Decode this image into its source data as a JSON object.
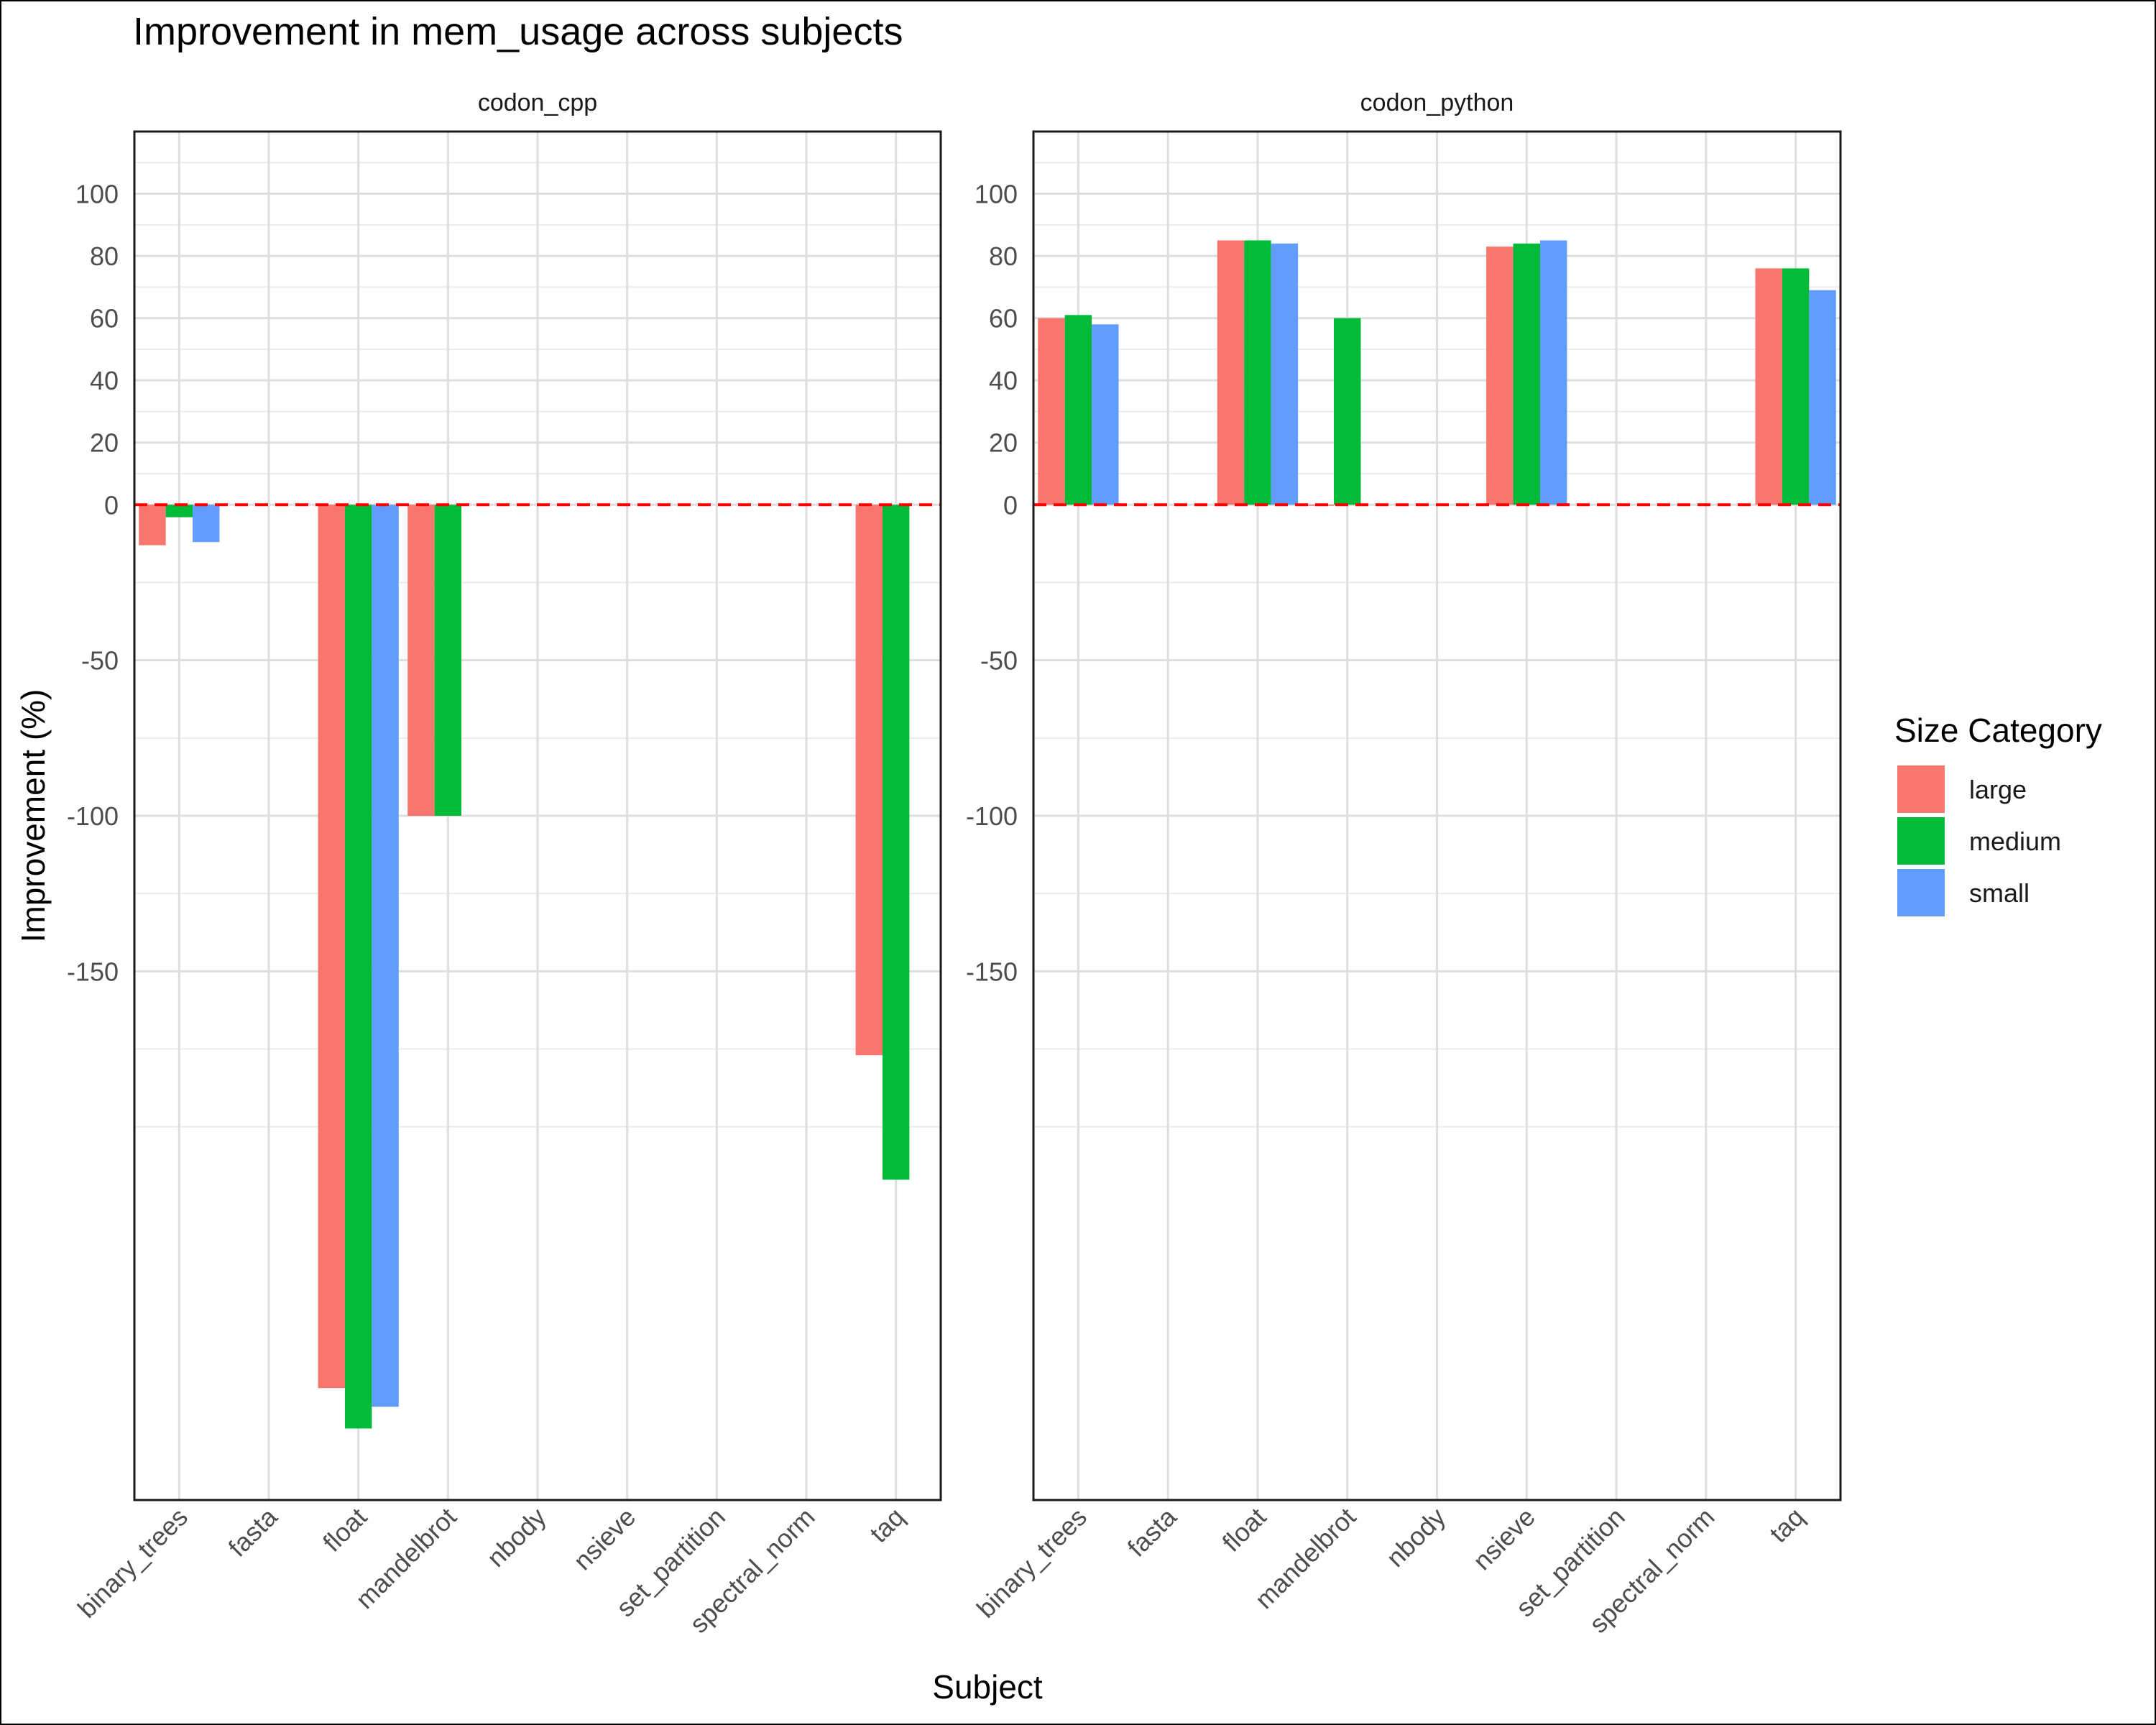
{
  "chart_data": {
    "type": "bar",
    "title": "Improvement in mem_usage across subjects",
    "xlabel": "Subject",
    "ylabel": "Improvement (%)",
    "ylim": [
      -320,
      120
    ],
    "yticks": [
      100,
      80,
      60,
      40,
      20,
      0,
      -50,
      -100,
      -150
    ],
    "reference_line": {
      "y": 0,
      "color": "#ff0000",
      "style": "dashed"
    },
    "categories": [
      "binary_trees",
      "fasta",
      "float",
      "mandelbrot",
      "nbody",
      "nsieve",
      "set_partition",
      "spectral_norm",
      "taq"
    ],
    "legend": {
      "title": "Size Category",
      "position": "right",
      "items": [
        {
          "name": "large",
          "color": "#f8766d"
        },
        {
          "name": "medium",
          "color": "#00ba38"
        },
        {
          "name": "small",
          "color": "#619cff"
        }
      ]
    },
    "panels": [
      {
        "strip": "codon_cpp",
        "series": [
          {
            "name": "large",
            "values": [
              -13,
              null,
              -284,
              -100,
              null,
              null,
              null,
              null,
              -177
            ]
          },
          {
            "name": "medium",
            "values": [
              -4,
              null,
              -297,
              -100,
              null,
              null,
              null,
              null,
              -217
            ]
          },
          {
            "name": "small",
            "values": [
              -12,
              null,
              -290,
              null,
              null,
              null,
              null,
              null,
              null
            ]
          }
        ]
      },
      {
        "strip": "codon_python",
        "series": [
          {
            "name": "large",
            "values": [
              60,
              null,
              85,
              0,
              null,
              83,
              null,
              null,
              76
            ]
          },
          {
            "name": "medium",
            "values": [
              61,
              null,
              85,
              60,
              null,
              84,
              null,
              null,
              76
            ]
          },
          {
            "name": "small",
            "values": [
              58,
              null,
              84,
              null,
              null,
              85,
              null,
              null,
              69
            ]
          }
        ]
      }
    ]
  }
}
